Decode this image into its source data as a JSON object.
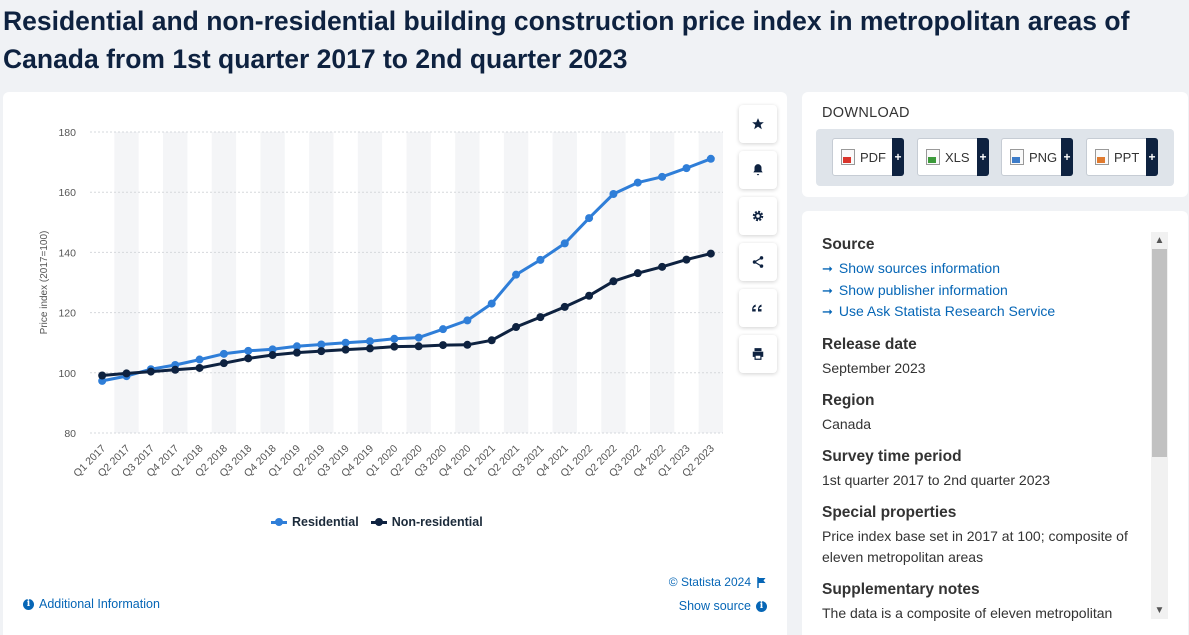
{
  "title": "Residential and non-residential building construction price index in metropolitan areas of Canada from 1st quarter 2017 to 2nd quarter 2023",
  "toolbar": {
    "icons": [
      "star-icon",
      "bell-icon",
      "gear-icon",
      "share-icon",
      "quote-icon",
      "print-icon"
    ]
  },
  "chart_data": {
    "type": "line",
    "title": "",
    "xlabel": "",
    "ylabel": "Price index (2017=100)",
    "ylim": [
      80,
      180
    ],
    "yticks": [
      80,
      100,
      120,
      140,
      160,
      180
    ],
    "grid": true,
    "legend_position": "bottom",
    "categories": [
      "Q1 2017",
      "Q2 2017",
      "Q3 2017",
      "Q4 2017",
      "Q1 2018",
      "Q2 2018",
      "Q3 2018",
      "Q4 2018",
      "Q1 2019",
      "Q2 2019",
      "Q3 2019",
      "Q4 2019",
      "Q1 2020",
      "Q2 2020",
      "Q3 2020",
      "Q4 2020",
      "Q1 2021",
      "Q2 2021",
      "Q3 2021",
      "Q4 2021",
      "Q1 2022",
      "Q2 2022",
      "Q3 2022",
      "Q4 2022",
      "Q1 2023",
      "Q2 2023"
    ],
    "series": [
      {
        "name": "Residential",
        "color": "#2f7ed8",
        "values": [
          97.3,
          98.9,
          101.2,
          102.6,
          104.4,
          106.3,
          107.3,
          107.8,
          108.8,
          109.4,
          110.0,
          110.5,
          111.3,
          111.7,
          114.5,
          117.4,
          123.0,
          132.6,
          137.5,
          143.0,
          151.4,
          159.4,
          163.2,
          165.1,
          168.0,
          171.1
        ]
      },
      {
        "name": "Non-residential",
        "color": "#0e2240",
        "values": [
          99.1,
          99.8,
          100.4,
          101.0,
          101.6,
          103.2,
          104.8,
          105.9,
          106.7,
          107.2,
          107.7,
          108.1,
          108.7,
          108.8,
          109.2,
          109.3,
          110.8,
          115.2,
          118.5,
          121.9,
          125.6,
          130.4,
          133.1,
          135.2,
          137.6,
          139.6
        ]
      }
    ]
  },
  "footer": {
    "copyright": "© Statista 2024",
    "additional_info": "Additional Information",
    "show_source": "Show source"
  },
  "download": {
    "title": "DOWNLOAD",
    "buttons": [
      {
        "label": "PDF",
        "color": "#d9342b"
      },
      {
        "label": "XLS",
        "color": "#3c9a3a"
      },
      {
        "label": "PNG",
        "color": "#3d7cc9"
      },
      {
        "label": "PPT",
        "color": "#e07a2e"
      }
    ]
  },
  "info": {
    "source_heading": "Source",
    "source_links": [
      "Show sources information",
      "Show publisher information",
      "Use Ask Statista Research Service"
    ],
    "release_heading": "Release date",
    "release_value": "September 2023",
    "region_heading": "Region",
    "region_value": "Canada",
    "survey_heading": "Survey time period",
    "survey_value": "1st quarter 2017 to 2nd quarter 2023",
    "special_heading": "Special properties",
    "special_value": "Price index base set in 2017 at 100; composite of eleven metropolitan areas",
    "supp_heading": "Supplementary notes",
    "supp_value": "The data is a composite of eleven metropolitan"
  }
}
